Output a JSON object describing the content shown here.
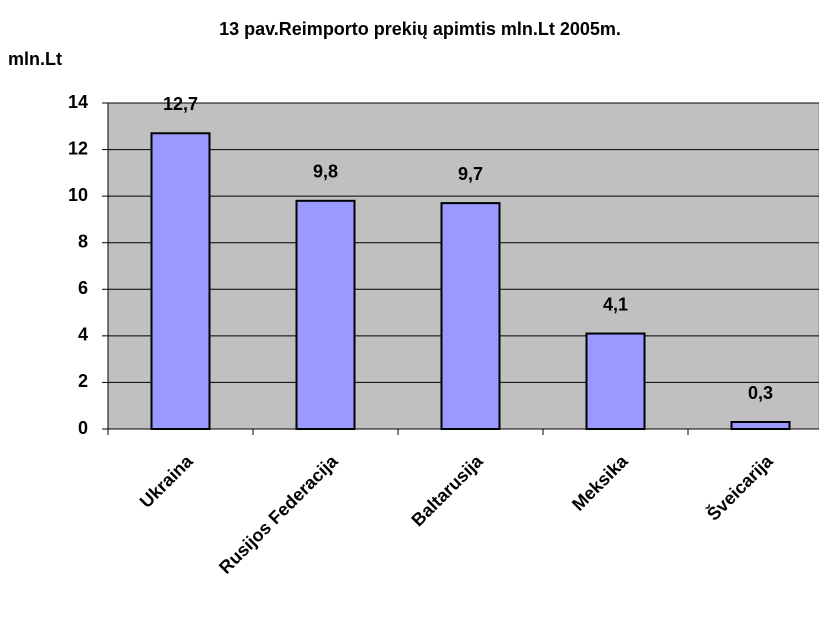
{
  "chart_data": {
    "type": "bar",
    "title": "13 pav.Reimporto prekių apimtis mln.Lt 2005m.",
    "y_label": "mln.Lt",
    "categories": [
      "Ukraina",
      "Rusijos Federacija",
      "Baltarusija",
      "Meksika",
      "Šveicarija"
    ],
    "values": [
      12.7,
      9.8,
      9.7,
      4.1,
      0.3
    ],
    "value_labels": [
      "12,7",
      "9,8",
      "9,7",
      "4,1",
      "0,3"
    ],
    "color": "#9999ff",
    "plot_background": "#c0c0c0",
    "ylim": [
      0,
      14
    ],
    "yticks": [
      0,
      2,
      4,
      6,
      8,
      10,
      12,
      14
    ],
    "grid": true
  }
}
